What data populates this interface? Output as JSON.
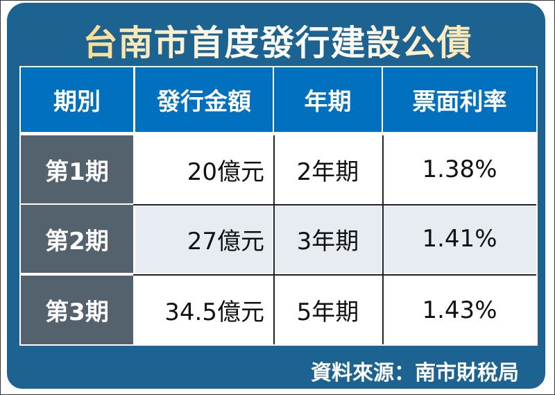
{
  "title": "台南市首度發行建設公債",
  "source": "資料來源：南市財稅局",
  "colors": {
    "panel": "#1d6391",
    "header": "#0070bf",
    "row_label": "#53626c",
    "alt_row": "#e6ecf2",
    "title_accent": "#f7c845"
  },
  "chart_data": {
    "type": "table",
    "title": "台南市首度發行建設公債",
    "columns": [
      "期別",
      "發行金額",
      "年期",
      "票面利率"
    ],
    "rows": [
      [
        "第1期",
        "20億元",
        "2年期",
        "1.38%"
      ],
      [
        "第2期",
        "27億元",
        "3年期",
        "1.41%"
      ],
      [
        "第3期",
        "34.5億元",
        "5年期",
        "1.43%"
      ]
    ]
  }
}
